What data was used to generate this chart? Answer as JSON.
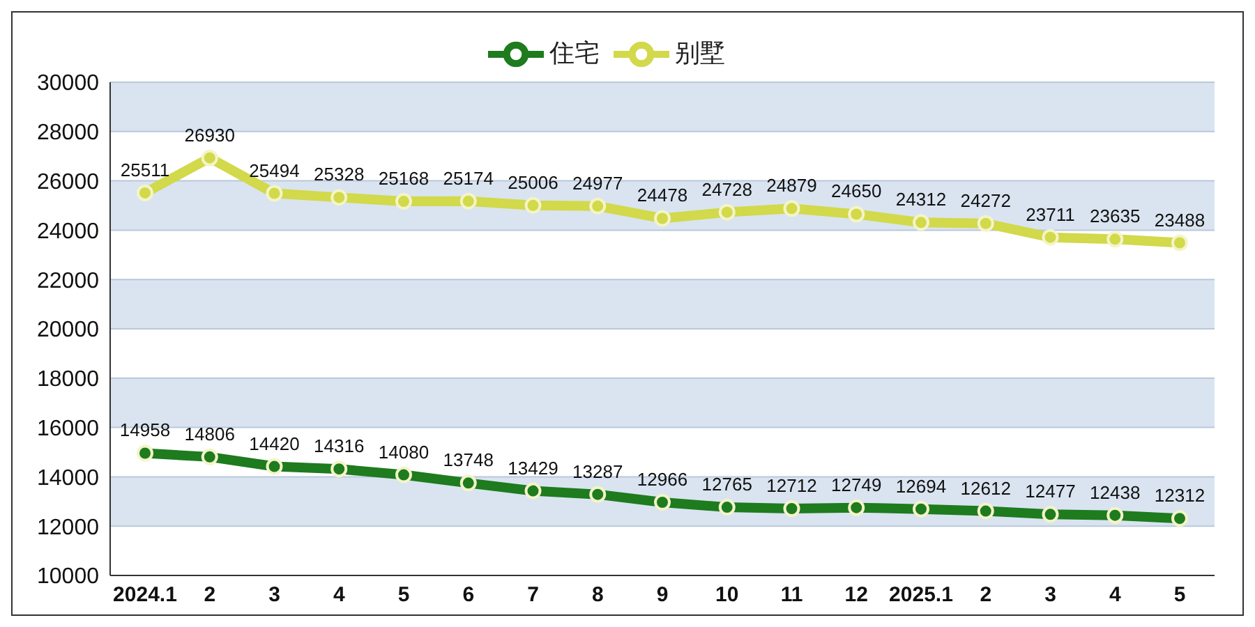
{
  "chart_data": {
    "type": "line",
    "categories": [
      "2024.1",
      "2",
      "3",
      "4",
      "5",
      "6",
      "7",
      "8",
      "9",
      "10",
      "11",
      "12",
      "2025.1",
      "2",
      "3",
      "4",
      "5"
    ],
    "series": [
      {
        "name": "住宅",
        "color": "#1e7b1e",
        "values": [
          14958,
          14806,
          14420,
          14316,
          14080,
          13748,
          13429,
          13287,
          12966,
          12765,
          12712,
          12749,
          12694,
          12612,
          12477,
          12438,
          12312
        ]
      },
      {
        "name": "别墅",
        "color": "#d2d94a",
        "values": [
          25511,
          26930,
          25494,
          25328,
          25168,
          25174,
          25006,
          24977,
          24478,
          24728,
          24879,
          24650,
          24312,
          24272,
          23711,
          23635,
          23488
        ]
      }
    ],
    "ylim": [
      10000,
      30000
    ],
    "yticks": [
      10000,
      12000,
      14000,
      16000,
      18000,
      20000,
      22000,
      24000,
      26000,
      28000,
      30000
    ],
    "grid": "y",
    "legend": "top",
    "marker": "circle",
    "line_style": "solid",
    "data_labels": true
  }
}
